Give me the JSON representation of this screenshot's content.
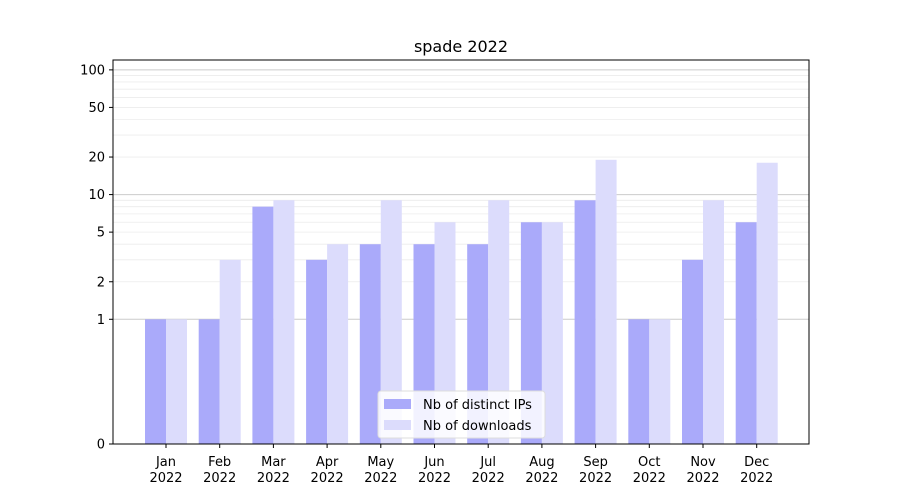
{
  "chart_data": {
    "type": "bar",
    "title": "spade 2022",
    "xlabel": "",
    "ylabel": "",
    "y_scale": "symlog",
    "ylim": [
      0,
      120
    ],
    "y_ticks": [
      0,
      1,
      2,
      5,
      10,
      20,
      50,
      100
    ],
    "y_tick_labels": [
      "0",
      "1",
      "2",
      "5",
      "10",
      "20",
      "50",
      "100"
    ],
    "categories": [
      "Jan\n2022",
      "Feb\n2022",
      "Mar\n2022",
      "Apr\n2022",
      "May\n2022",
      "Jun\n2022",
      "Jul\n2022",
      "Aug\n2022",
      "Sep\n2022",
      "Oct\n2022",
      "Nov\n2022",
      "Dec\n2022"
    ],
    "series": [
      {
        "name": "Nb of distinct IPs",
        "color": "#aaaafa",
        "values": [
          1,
          1,
          8,
          3,
          4,
          4,
          4,
          6,
          9,
          1,
          3,
          6
        ]
      },
      {
        "name": "Nb of downloads",
        "color": "#dcdcfc",
        "values": [
          1,
          3,
          9,
          4,
          9,
          6,
          9,
          6,
          19,
          1,
          9,
          18
        ]
      }
    ],
    "grid": "horizontal",
    "legend_position": "bottom-center"
  }
}
